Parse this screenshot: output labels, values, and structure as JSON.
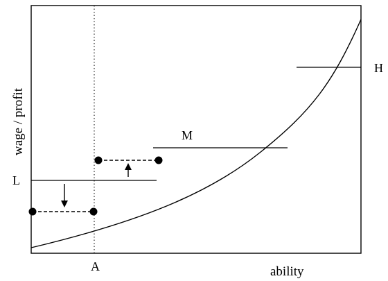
{
  "diagram": {
    "y_axis_label": "wage / profit",
    "x_axis_label": "ability",
    "x_marker_label": "A",
    "levels": [
      {
        "id": "L",
        "label": "L"
      },
      {
        "id": "M",
        "label": "M"
      },
      {
        "id": "H",
        "label": "H"
      }
    ],
    "arrows": [
      {
        "id": "down",
        "direction": "down"
      },
      {
        "id": "up",
        "direction": "up"
      }
    ]
  }
}
